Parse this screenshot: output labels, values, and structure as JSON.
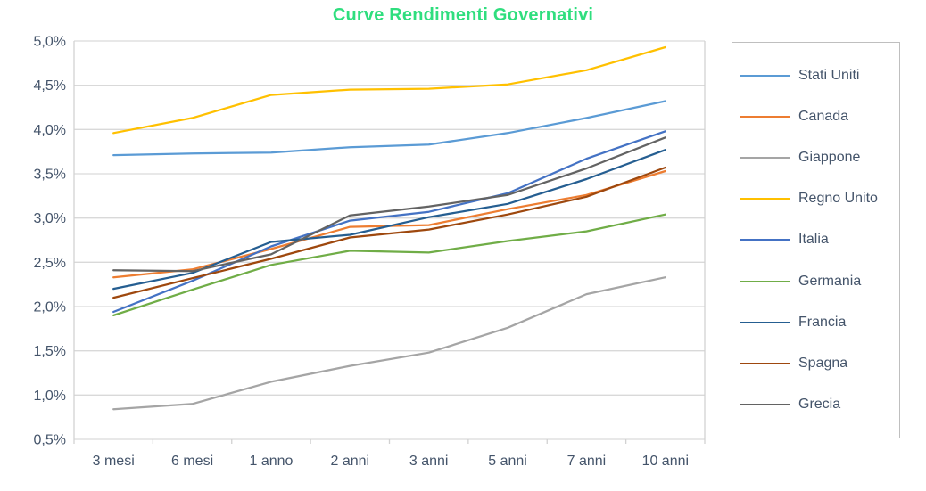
{
  "chart_data": {
    "type": "line",
    "title": "Curve Rendimenti Governativi",
    "categories": [
      "3 mesi",
      "6 mesi",
      "1 anno",
      "2 anni",
      "3 anni",
      "5 anni",
      "7 anni",
      "10 anni"
    ],
    "series": [
      {
        "name": "Stati Uniti",
        "color": "#5B9BD5",
        "values": [
          3.71,
          3.73,
          3.74,
          3.8,
          3.83,
          3.96,
          4.13,
          4.32
        ]
      },
      {
        "name": "Canada",
        "color": "#ED7D31",
        "values": [
          2.33,
          2.42,
          2.65,
          2.9,
          2.92,
          3.1,
          3.26,
          3.53
        ]
      },
      {
        "name": "Giappone",
        "color": "#A5A5A5",
        "values": [
          0.84,
          0.9,
          1.15,
          1.33,
          1.48,
          1.76,
          2.14,
          2.33
        ]
      },
      {
        "name": "Regno Unito",
        "color": "#FFC000",
        "values": [
          3.96,
          4.13,
          4.39,
          4.45,
          4.46,
          4.51,
          4.67,
          4.93
        ]
      },
      {
        "name": "Italia",
        "color": "#4472C4",
        "values": [
          1.94,
          2.29,
          2.68,
          2.97,
          3.07,
          3.28,
          3.67,
          3.98
        ]
      },
      {
        "name": "Germania",
        "color": "#70AD47",
        "values": [
          1.9,
          2.19,
          2.47,
          2.63,
          2.61,
          2.74,
          2.85,
          3.04
        ]
      },
      {
        "name": "Francia",
        "color": "#255E91",
        "values": [
          2.2,
          2.38,
          2.73,
          2.81,
          3.01,
          3.16,
          3.44,
          3.77
        ]
      },
      {
        "name": "Spagna",
        "color": "#9E480E",
        "values": [
          2.1,
          2.32,
          2.54,
          2.78,
          2.87,
          3.04,
          3.24,
          3.57
        ]
      },
      {
        "name": "Grecia",
        "color": "#636363",
        "values": [
          2.41,
          2.4,
          2.59,
          3.03,
          3.13,
          3.26,
          3.56,
          3.91
        ]
      }
    ],
    "ylim": [
      0.5,
      5.0
    ],
    "y_ticks": [
      0.5,
      1.0,
      1.5,
      2.0,
      2.5,
      3.0,
      3.5,
      4.0,
      4.5,
      5.0
    ],
    "y_tick_labels": [
      "0,5%",
      "1,0%",
      "1,5%",
      "2,0%",
      "2,5%",
      "3,0%",
      "3,5%",
      "4,0%",
      "4,5%",
      "5,0%"
    ],
    "grid": true,
    "legend_position": "right",
    "xlabel": "",
    "ylabel": ""
  },
  "colors": {
    "title": "#2FDE7E",
    "axis_text": "#44546A",
    "gridline": "#D9D9D9",
    "plot_border": "#D2D2D2",
    "legend_border": "#BFBFBF"
  }
}
